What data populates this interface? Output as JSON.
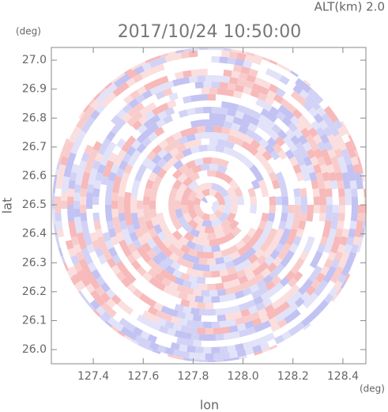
{
  "chart_data": {
    "type": "image",
    "title": "2017/10/24 10:50:00",
    "annotation": "ALT(km) 2.0",
    "x_label": "lon",
    "y_label": "lat",
    "x_unit": "(deg)",
    "y_unit": "(deg)",
    "xlim": [
      127.232,
      128.492
    ],
    "ylim": [
      25.951,
      27.044
    ],
    "xticks": [
      127.4,
      127.6,
      127.8,
      {
        "value": 128,
        "label": "128.0"
      },
      128.2,
      128.4
    ],
    "yticks": [
      {
        "value": 26,
        "label": "26.0"
      },
      26.1,
      26.2,
      26.3,
      26.4,
      26.5,
      26.6,
      26.7,
      26.8,
      26.9,
      {
        "value": 27,
        "label": "27.0"
      }
    ]
  }
}
